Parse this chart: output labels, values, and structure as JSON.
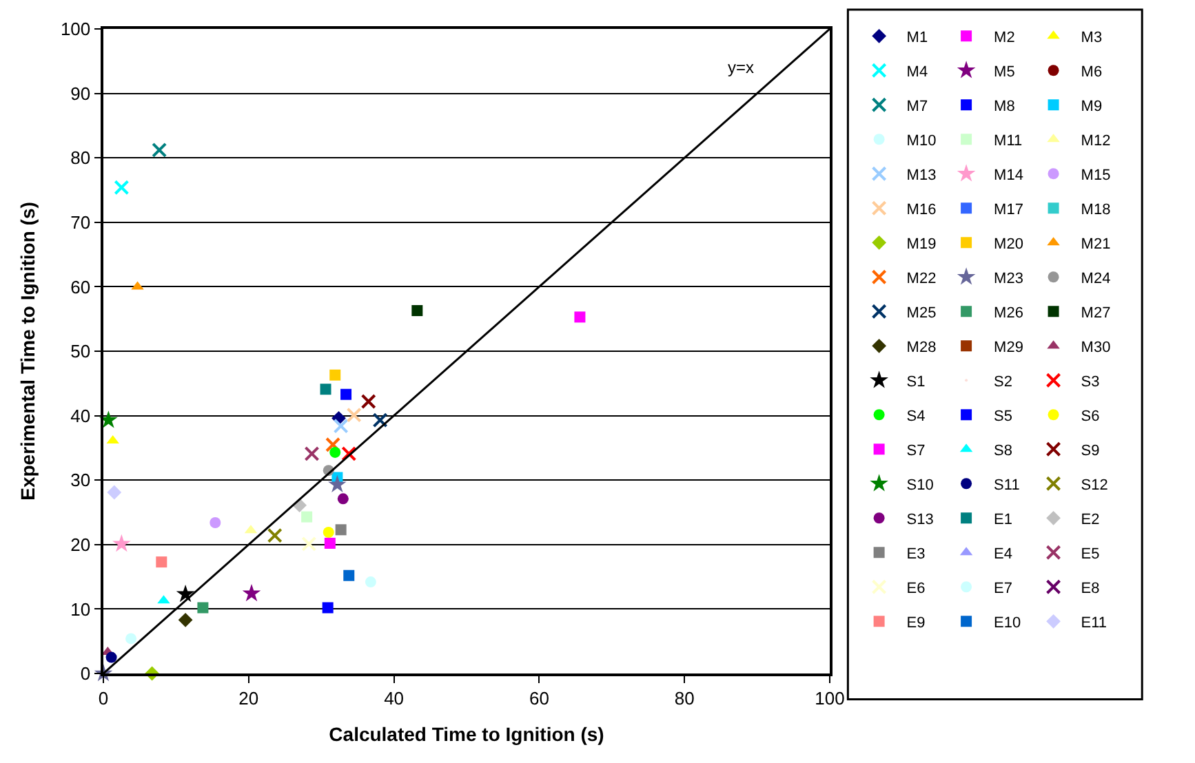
{
  "chart_data": {
    "type": "scatter",
    "xlabel": "Calculated Time to Ignition (s)",
    "ylabel": "Experimental Time to Ignition (s)",
    "xlim": [
      0,
      100
    ],
    "xticks": [
      0,
      20,
      40,
      60,
      80,
      100
    ],
    "ylim": [
      0,
      100
    ],
    "yticks": [
      0,
      10,
      20,
      30,
      40,
      50,
      60,
      70,
      80,
      90,
      100
    ],
    "grid": "y",
    "legend": "right",
    "annotations": [
      "y=x"
    ],
    "series": [
      {
        "name": "M1",
        "color": "#000080",
        "marker": "diamond",
        "x": [
          32.4
        ],
        "values": [
          39.6
        ]
      },
      {
        "name": "M2",
        "color": "#ff00ff",
        "marker": "square",
        "x": [
          65.6
        ],
        "values": [
          55.3
        ]
      },
      {
        "name": "M3",
        "color": "#ffff00",
        "marker": "triangle",
        "x": [
          1.3
        ],
        "values": [
          36.1
        ]
      },
      {
        "name": "M4",
        "color": "#00ffff",
        "marker": "cross",
        "x": [
          2.5
        ],
        "values": [
          75.4
        ]
      },
      {
        "name": "M5",
        "color": "#800080",
        "marker": "star",
        "x": [
          20.4
        ],
        "values": [
          12.4
        ]
      },
      {
        "name": "M6",
        "color": "#800000",
        "marker": "circle"
      },
      {
        "name": "M7",
        "color": "#008080",
        "marker": "cross",
        "x": [
          7.7
        ],
        "values": [
          81.2
        ]
      },
      {
        "name": "M8",
        "color": "#0000ff",
        "marker": "square",
        "x": [
          33.4
        ],
        "values": [
          43.3
        ]
      },
      {
        "name": "M9",
        "color": "#00ccff",
        "marker": "square",
        "x": [
          32.2
        ],
        "values": [
          30.4
        ]
      },
      {
        "name": "M10",
        "color": "#ccffff",
        "marker": "circle",
        "x": [
          36.8
        ],
        "values": [
          14.2
        ]
      },
      {
        "name": "M11",
        "color": "#ccffcc",
        "marker": "square",
        "x": [
          28.0
        ],
        "values": [
          24.3
        ]
      },
      {
        "name": "M12",
        "color": "#ffff99",
        "marker": "triangle",
        "x": [
          20.3
        ],
        "values": [
          22.2
        ]
      },
      {
        "name": "M13",
        "color": "#99ccff",
        "marker": "cross",
        "x": [
          32.7
        ],
        "values": [
          38.4
        ]
      },
      {
        "name": "M14",
        "color": "#ff99cc",
        "marker": "star",
        "x": [
          2.5
        ],
        "values": [
          20.1
        ]
      },
      {
        "name": "M15",
        "color": "#cc99ff",
        "marker": "circle",
        "x": [
          15.4
        ],
        "values": [
          23.4
        ]
      },
      {
        "name": "M16",
        "color": "#ffcc99",
        "marker": "cross",
        "x": [
          34.5
        ],
        "values": [
          40.1
        ]
      },
      {
        "name": "M17",
        "color": "#3366ff",
        "marker": "square"
      },
      {
        "name": "M18",
        "color": "#33cccc",
        "marker": "square"
      },
      {
        "name": "M19",
        "color": "#99cc00",
        "marker": "diamond",
        "x": [
          6.7
        ],
        "values": [
          0
        ]
      },
      {
        "name": "M20",
        "color": "#ffcc00",
        "marker": "square",
        "x": [
          31.9
        ],
        "values": [
          46.3
        ]
      },
      {
        "name": "M21",
        "color": "#ff9900",
        "marker": "triangle",
        "x": [
          4.7
        ],
        "values": [
          60
        ]
      },
      {
        "name": "M22",
        "color": "#ff6600",
        "marker": "cross",
        "x": [
          31.6
        ],
        "values": [
          35.5
        ]
      },
      {
        "name": "M23",
        "color": "#666699",
        "marker": "star",
        "x": [
          0,
          32.2
        ],
        "values": [
          0,
          29.3
        ]
      },
      {
        "name": "M24",
        "color": "#969696",
        "marker": "circle",
        "x": [
          31.0
        ],
        "values": [
          31.5
        ]
      },
      {
        "name": "M25",
        "color": "#003366",
        "marker": "cross",
        "x": [
          38.1
        ],
        "values": [
          39.3
        ]
      },
      {
        "name": "M26",
        "color": "#339966",
        "marker": "square",
        "x": [
          13.7
        ],
        "values": [
          10.2
        ]
      },
      {
        "name": "M27",
        "color": "#003300",
        "marker": "square",
        "x": [
          43.2
        ],
        "values": [
          56.3
        ]
      },
      {
        "name": "M28",
        "color": "#333300",
        "marker": "diamond",
        "x": [
          11.3
        ],
        "values": [
          8.3
        ]
      },
      {
        "name": "M29",
        "color": "#993300",
        "marker": "square"
      },
      {
        "name": "M30",
        "color": "#993366",
        "marker": "triangle",
        "x": [
          0.6
        ],
        "values": [
          3.3
        ]
      },
      {
        "name": "S1",
        "color": "#000000",
        "marker": "star",
        "x": [
          11.3
        ],
        "values": [
          12.3
        ]
      },
      {
        "name": "S2",
        "marker": "none"
      },
      {
        "name": "S3",
        "color": "#ff0000",
        "marker": "cross",
        "x": [
          33.8
        ],
        "values": [
          34.1
        ]
      },
      {
        "name": "S4",
        "color": "#00ff00",
        "marker": "circle",
        "x": [
          31.9
        ],
        "values": [
          34.3
        ]
      },
      {
        "name": "S5",
        "color": "#0000ff",
        "marker": "square",
        "x": [
          30.9
        ],
        "values": [
          10.2
        ]
      },
      {
        "name": "S6",
        "color": "#ffff00",
        "marker": "circle",
        "x": [
          31.0
        ],
        "values": [
          21.9
        ]
      },
      {
        "name": "S7",
        "color": "#ff00ff",
        "marker": "square",
        "x": [
          31.2
        ],
        "values": [
          20.2
        ]
      },
      {
        "name": "S8",
        "color": "#00ffff",
        "marker": "triangle",
        "x": [
          8.3
        ],
        "values": [
          11.3
        ]
      },
      {
        "name": "S9",
        "color": "#800000",
        "marker": "cross",
        "x": [
          36.5
        ],
        "values": [
          42.2
        ]
      },
      {
        "name": "S10",
        "color": "#008000",
        "marker": "star",
        "x": [
          0.7
        ],
        "values": [
          39.3
        ]
      },
      {
        "name": "S11",
        "color": "#000080",
        "marker": "circle",
        "x": [
          1.1
        ],
        "values": [
          2.5
        ]
      },
      {
        "name": "S12",
        "color": "#808000",
        "marker": "cross",
        "x": [
          23.6
        ],
        "values": [
          21.4
        ]
      },
      {
        "name": "S13",
        "color": "#800080",
        "marker": "circle",
        "x": [
          33.0
        ],
        "values": [
          27.1
        ]
      },
      {
        "name": "E1",
        "color": "#008080",
        "marker": "square",
        "x": [
          30.6
        ],
        "values": [
          44.1
        ]
      },
      {
        "name": "E2",
        "color": "#c0c0c0",
        "marker": "diamond",
        "x": [
          27.0
        ],
        "values": [
          26.1
        ]
      },
      {
        "name": "E3",
        "color": "#808080",
        "marker": "square",
        "x": [
          32.7
        ],
        "values": [
          22.3
        ]
      },
      {
        "name": "E4",
        "color": "#9999ff",
        "marker": "triangle"
      },
      {
        "name": "E5",
        "color": "#993366",
        "marker": "cross",
        "x": [
          28.7
        ],
        "values": [
          34.1
        ]
      },
      {
        "name": "E6",
        "color": "#ffffcc",
        "marker": "cross",
        "x": [
          28.3
        ],
        "values": [
          20.1
        ]
      },
      {
        "name": "E7",
        "color": "#ccffff",
        "marker": "circle",
        "x": [
          3.8
        ],
        "values": [
          5.4
        ]
      },
      {
        "name": "E8",
        "color": "#660066",
        "marker": "cross"
      },
      {
        "name": "E9",
        "color": "#ff8080",
        "marker": "square",
        "x": [
          8.0
        ],
        "values": [
          17.3
        ]
      },
      {
        "name": "E10",
        "color": "#0066cc",
        "marker": "square",
        "x": [
          33.8
        ],
        "values": [
          15.2
        ]
      },
      {
        "name": "E11",
        "color": "#ccccff",
        "marker": "diamond",
        "x": [
          1.5
        ],
        "values": [
          28.1
        ]
      },
      {
        "type": "line",
        "color": "#000000",
        "x": [
          0,
          100
        ],
        "values": [
          0,
          100
        ]
      }
    ]
  }
}
